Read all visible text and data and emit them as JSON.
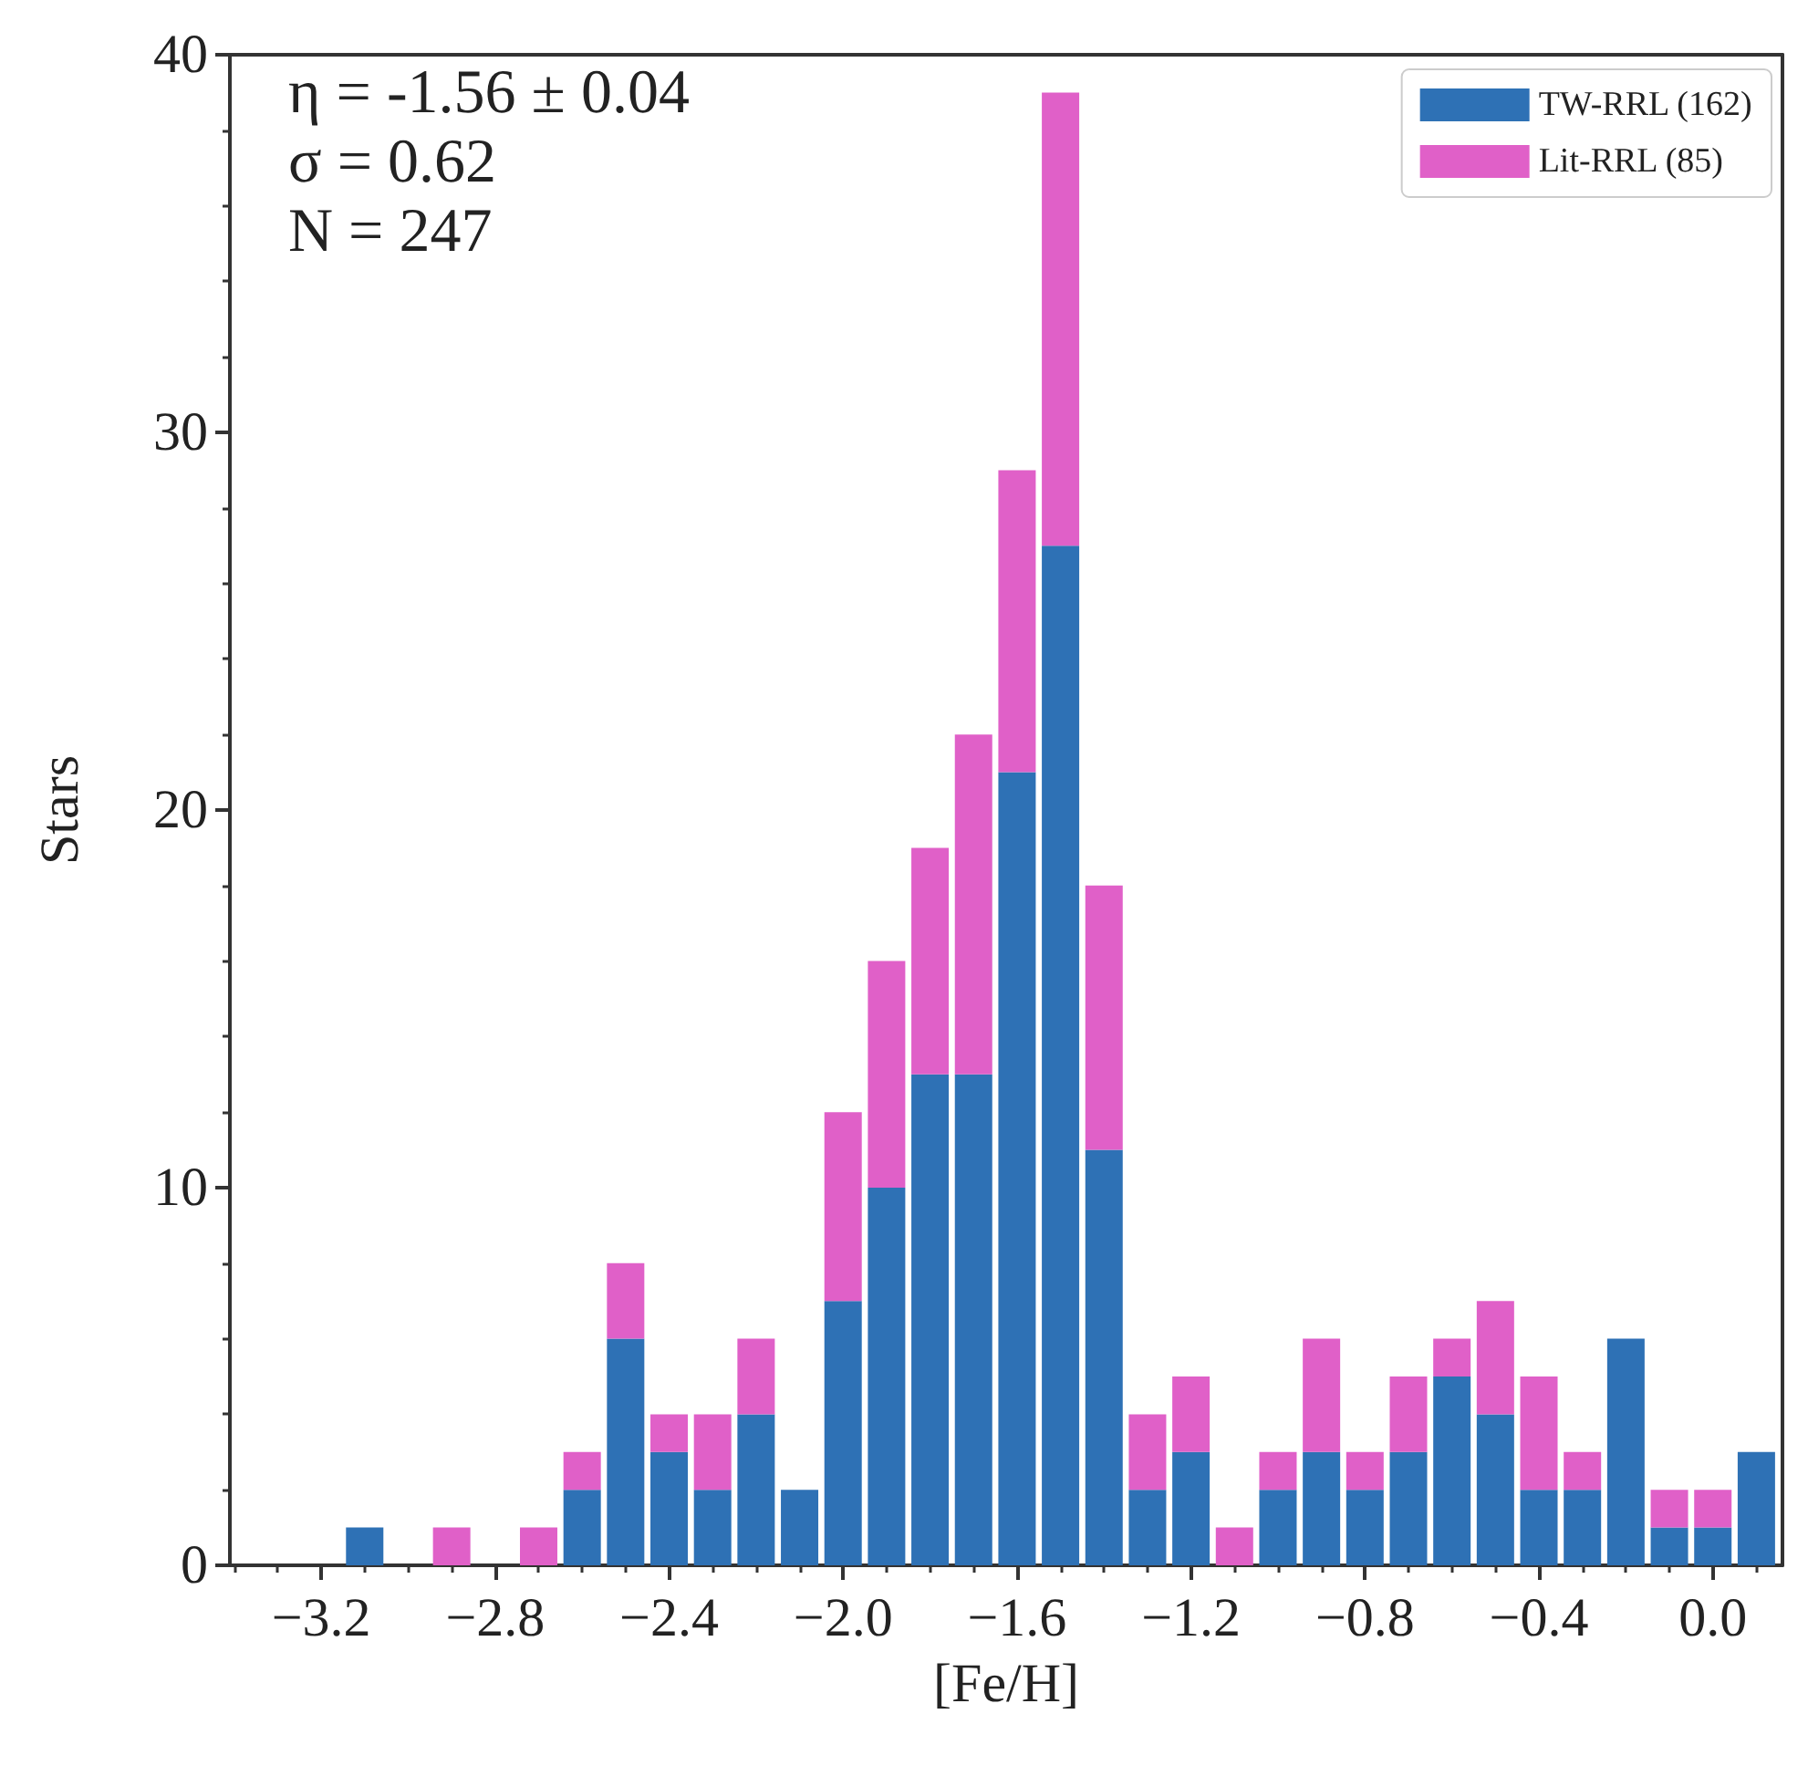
{
  "chart_data": {
    "type": "bar",
    "xlabel": "[Fe/H]",
    "ylabel": "Stars",
    "x": [
      -3.1,
      -3.0,
      -2.9,
      -2.8,
      -2.7,
      -2.6,
      -2.5,
      -2.4,
      -2.3,
      -2.2,
      -2.1,
      -2.0,
      -1.9,
      -1.8,
      -1.7,
      -1.6,
      -1.5,
      -1.4,
      -1.3,
      -1.2,
      -1.1,
      -1.0,
      -0.9,
      -0.8,
      -0.7,
      -0.6,
      -0.5,
      -0.4,
      -0.3,
      -0.2,
      -0.1,
      0.0,
      0.1
    ],
    "stacked": true,
    "series": [
      {
        "name": "TW-RRL (162)",
        "color": "#2e71b5",
        "values": [
          1,
          0,
          0,
          0,
          0,
          2,
          6,
          3,
          2,
          4,
          2,
          7,
          10,
          13,
          13,
          21,
          27,
          11,
          2,
          3,
          0,
          2,
          3,
          2,
          3,
          5,
          4,
          2,
          2,
          6,
          1,
          1,
          3
        ]
      },
      {
        "name": "Lit-RRL (85)",
        "color": "#e060c8",
        "values": [
          0,
          0,
          1,
          0,
          1,
          1,
          2,
          1,
          2,
          2,
          0,
          5,
          6,
          6,
          9,
          8,
          12,
          7,
          2,
          2,
          1,
          1,
          3,
          1,
          2,
          1,
          3,
          3,
          1,
          0,
          1,
          1,
          0
        ]
      }
    ],
    "xlim": [
      -3.41,
      0.16
    ],
    "xticks": [
      {
        "value": -3.2,
        "label": "−3.2"
      },
      {
        "value": -2.8,
        "label": "−2.8"
      },
      {
        "value": -2.4,
        "label": "−2.4"
      },
      {
        "value": -2.0,
        "label": "−2.0"
      },
      {
        "value": -1.6,
        "label": "−1.6"
      },
      {
        "value": -1.2,
        "label": "−1.2"
      },
      {
        "value": -0.8,
        "label": "−0.8"
      },
      {
        "value": -0.4,
        "label": "−0.4"
      },
      {
        "value": 0,
        "label": "0.0"
      }
    ],
    "ylim": [
      0,
      40
    ],
    "yticks": [
      0,
      10,
      20,
      30,
      40
    ],
    "annotations": [
      "η = -1.56 ± 0.04",
      "σ = 0.62",
      "N = 247"
    ],
    "legend": "top right"
  }
}
